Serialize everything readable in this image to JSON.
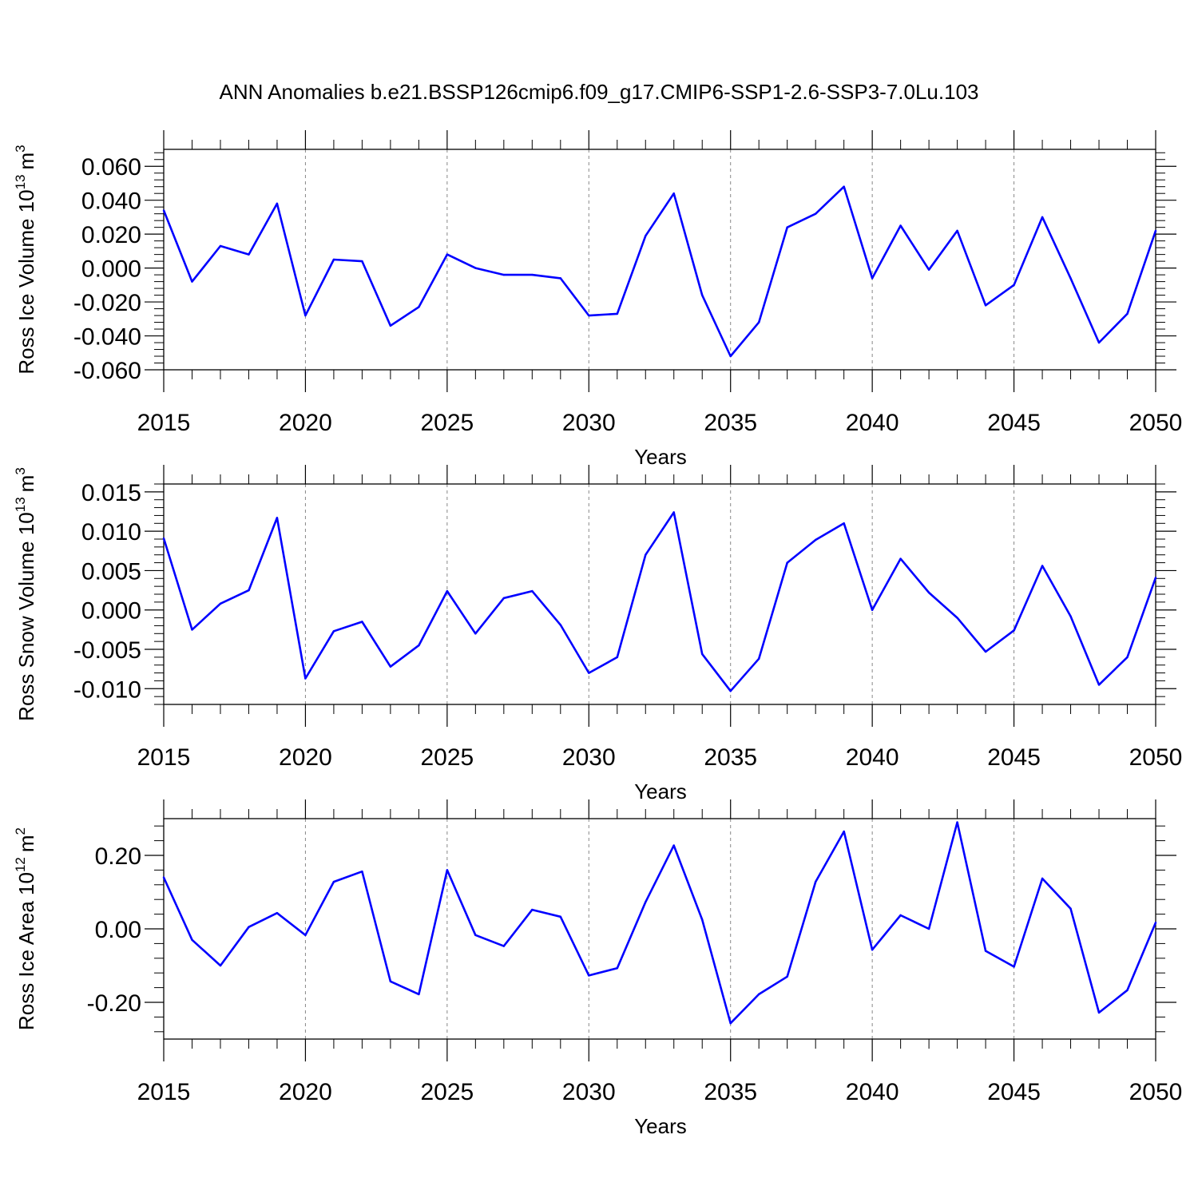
{
  "figure": {
    "title": "ANN Anomalies b.e21.BSSP126cmip6.f09_g17.CMIP6-SSP1-2.6-SSP3-7.0Lu.103",
    "line_color": "#0000ff",
    "grid_color": "#888888"
  },
  "chart_data": [
    {
      "type": "line",
      "ylabel_main": "Ross Ice Volume 10",
      "ylabel_exp": "13",
      "ylabel_unit": "m",
      "ylabel_unit_exp": "3",
      "xlabel": "Years",
      "xlim": [
        2015,
        2050
      ],
      "ylim": [
        -0.06,
        0.07
      ],
      "yticks": [
        -0.06,
        -0.04,
        -0.02,
        0.0,
        0.02,
        0.04,
        0.06
      ],
      "ytick_labels": [
        "-0.060",
        "-0.040",
        "-0.020",
        "0.000",
        "0.020",
        "0.040",
        "0.060"
      ],
      "xticks": [
        2015,
        2020,
        2025,
        2030,
        2035,
        2040,
        2045,
        2050
      ],
      "xtick_labels": [
        "2015",
        "2020",
        "2025",
        "2030",
        "2035",
        "2040",
        "2045",
        "2050"
      ],
      "grid_x": [
        2020,
        2025,
        2030,
        2035,
        2040,
        2045
      ],
      "x": [
        2015,
        2016,
        2017,
        2018,
        2019,
        2020,
        2021,
        2022,
        2023,
        2024,
        2025,
        2026,
        2027,
        2028,
        2029,
        2030,
        2031,
        2032,
        2033,
        2034,
        2035,
        2036,
        2037,
        2038,
        2039,
        2040,
        2041,
        2042,
        2043,
        2044,
        2045,
        2046,
        2047,
        2048,
        2049,
        2050
      ],
      "y": [
        0.034,
        -0.008,
        0.013,
        0.008,
        0.038,
        -0.028,
        0.005,
        0.004,
        -0.034,
        -0.023,
        0.008,
        0.0,
        -0.004,
        -0.004,
        -0.006,
        -0.028,
        -0.027,
        0.019,
        0.044,
        -0.016,
        -0.052,
        -0.032,
        0.024,
        0.032,
        0.048,
        -0.006,
        0.025,
        -0.001,
        0.022,
        -0.022,
        -0.01,
        0.03,
        -0.006,
        -0.044,
        -0.027,
        0.022
      ]
    },
    {
      "type": "line",
      "ylabel_main": "Ross Snow Volume 10",
      "ylabel_exp": "13",
      "ylabel_unit": "m",
      "ylabel_unit_exp": "3",
      "xlabel": "Years",
      "xlim": [
        2015,
        2050
      ],
      "ylim": [
        -0.012,
        0.016
      ],
      "yticks": [
        -0.01,
        -0.005,
        0.0,
        0.005,
        0.01,
        0.015
      ],
      "ytick_labels": [
        "-0.010",
        "-0.005",
        "0.000",
        "0.005",
        "0.010",
        "0.015"
      ],
      "xticks": [
        2015,
        2020,
        2025,
        2030,
        2035,
        2040,
        2045,
        2050
      ],
      "xtick_labels": [
        "2015",
        "2020",
        "2025",
        "2030",
        "2035",
        "2040",
        "2045",
        "2050"
      ],
      "grid_x": [
        2020,
        2025,
        2030,
        2035,
        2040,
        2045
      ],
      "x": [
        2015,
        2016,
        2017,
        2018,
        2019,
        2020,
        2021,
        2022,
        2023,
        2024,
        2025,
        2026,
        2027,
        2028,
        2029,
        2030,
        2031,
        2032,
        2033,
        2034,
        2035,
        2036,
        2037,
        2038,
        2039,
        2040,
        2041,
        2042,
        2043,
        2044,
        2045,
        2046,
        2047,
        2048,
        2049,
        2050
      ],
      "y": [
        0.0091,
        -0.0025,
        0.0008,
        0.0025,
        0.0117,
        -0.0087,
        -0.0027,
        -0.0015,
        -0.0072,
        -0.0045,
        0.0024,
        -0.003,
        0.0015,
        0.0024,
        -0.0019,
        -0.008,
        -0.006,
        0.007,
        0.0124,
        -0.0056,
        -0.0103,
        -0.0062,
        0.006,
        0.0089,
        0.011,
        0.0,
        0.0065,
        0.0022,
        -0.001,
        -0.0053,
        -0.0026,
        0.0056,
        -0.0008,
        -0.0095,
        -0.006,
        0.0041
      ]
    },
    {
      "type": "line",
      "ylabel_main": "Ross Ice Area 10",
      "ylabel_exp": "12",
      "ylabel_unit": "m",
      "ylabel_unit_exp": "2",
      "xlabel": "Years",
      "xlim": [
        2015,
        2050
      ],
      "ylim": [
        -0.3,
        0.3
      ],
      "yticks": [
        -0.2,
        0.0,
        0.2
      ],
      "ytick_labels": [
        "-0.20",
        "0.00",
        "0.20"
      ],
      "xticks": [
        2015,
        2020,
        2025,
        2030,
        2035,
        2040,
        2045,
        2050
      ],
      "xtick_labels": [
        "2015",
        "2020",
        "2025",
        "2030",
        "2035",
        "2040",
        "2045",
        "2050"
      ],
      "grid_x": [
        2020,
        2025,
        2030,
        2035,
        2040,
        2045
      ],
      "x": [
        2015,
        2016,
        2017,
        2018,
        2019,
        2020,
        2021,
        2022,
        2023,
        2024,
        2025,
        2026,
        2027,
        2028,
        2029,
        2030,
        2031,
        2032,
        2033,
        2034,
        2035,
        2036,
        2037,
        2038,
        2039,
        2040,
        2041,
        2042,
        2043,
        2044,
        2045,
        2046,
        2047,
        2048,
        2049,
        2050
      ],
      "y": [
        0.14,
        -0.03,
        -0.1,
        0.005,
        0.043,
        -0.017,
        0.128,
        0.156,
        -0.143,
        -0.178,
        0.16,
        -0.017,
        -0.047,
        0.052,
        0.033,
        -0.127,
        -0.107,
        0.073,
        0.227,
        0.025,
        -0.257,
        -0.178,
        -0.13,
        0.128,
        0.265,
        -0.057,
        0.037,
        0.0,
        0.29,
        -0.06,
        -0.103,
        0.137,
        0.055,
        -0.228,
        -0.167,
        0.017
      ]
    }
  ]
}
